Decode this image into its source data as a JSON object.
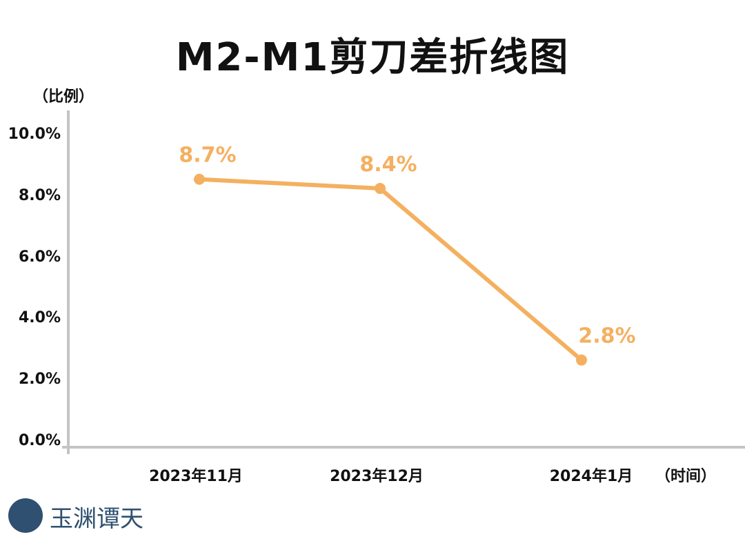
{
  "chart_data": {
    "type": "line",
    "title": "M2-M1剪刀差折线图",
    "ylabel": "（比例）",
    "xlabel": "（时间）",
    "categories": [
      "2023年11月",
      "2023年12月",
      "2024年1月"
    ],
    "values": [
      8.7,
      8.4,
      2.8
    ],
    "data_labels": [
      "8.7%",
      "8.4%",
      "2.8%"
    ],
    "ylim": [
      0,
      10
    ],
    "yticks": [
      "0.0%",
      "2.0%",
      "4.0%",
      "6.0%",
      "8.0%",
      "10.0%"
    ],
    "line_color": "#f4b060",
    "grid": false
  },
  "logo": {
    "text": "玉渊谭天"
  }
}
